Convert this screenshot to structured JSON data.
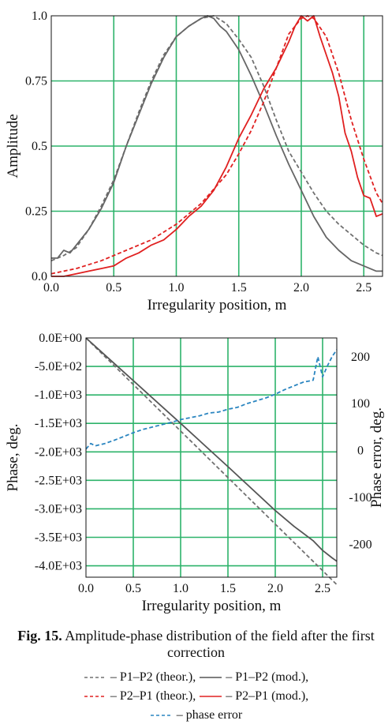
{
  "chart_data": [
    {
      "type": "line",
      "xlabel": "Irregularity position, m",
      "ylabel": "Amplitude",
      "xlim": [
        0,
        2.65
      ],
      "ylim": [
        0,
        1.0
      ],
      "xticks": [
        "0.0",
        "0.5",
        "1.0",
        "1.5",
        "2.0",
        "2.5"
      ],
      "yticks": [
        "0.0",
        "0.25",
        "0.5",
        "0.75",
        "1.0"
      ],
      "grid": true,
      "series": [
        {
          "name": "P1–P2 (theor.)",
          "color": "#707070",
          "dash": true,
          "x": [
            0,
            0.1,
            0.2,
            0.3,
            0.4,
            0.5,
            0.6,
            0.7,
            0.8,
            0.9,
            1.0,
            1.1,
            1.2,
            1.3,
            1.4,
            1.5,
            1.6,
            1.7,
            1.8,
            1.9,
            2.0,
            2.1,
            2.2,
            2.3,
            2.4,
            2.5,
            2.6,
            2.65
          ],
          "values": [
            0.06,
            0.08,
            0.11,
            0.18,
            0.27,
            0.37,
            0.5,
            0.63,
            0.75,
            0.85,
            0.92,
            0.96,
            0.99,
            1.0,
            0.97,
            0.91,
            0.84,
            0.73,
            0.6,
            0.48,
            0.4,
            0.32,
            0.25,
            0.2,
            0.16,
            0.12,
            0.09,
            0.08
          ]
        },
        {
          "name": "P1–P2 (mod.)",
          "color": "#666666",
          "dash": false,
          "x": [
            0,
            0.05,
            0.1,
            0.15,
            0.2,
            0.3,
            0.4,
            0.5,
            0.6,
            0.7,
            0.8,
            0.9,
            1.0,
            1.1,
            1.2,
            1.25,
            1.3,
            1.35,
            1.4,
            1.5,
            1.6,
            1.7,
            1.8,
            1.9,
            2.0,
            2.1,
            2.2,
            2.3,
            2.4,
            2.5,
            2.6,
            2.65
          ],
          "values": [
            0.07,
            0.07,
            0.1,
            0.09,
            0.12,
            0.18,
            0.26,
            0.36,
            0.5,
            0.62,
            0.74,
            0.84,
            0.92,
            0.96,
            0.99,
            1.0,
            0.99,
            0.96,
            0.94,
            0.87,
            0.77,
            0.66,
            0.54,
            0.43,
            0.33,
            0.23,
            0.15,
            0.1,
            0.06,
            0.04,
            0.02,
            0.02
          ]
        },
        {
          "name": "P2–P1 (theor.)",
          "color": "#e02020",
          "dash": true,
          "x": [
            0,
            0.2,
            0.4,
            0.6,
            0.8,
            1.0,
            1.2,
            1.4,
            1.5,
            1.6,
            1.7,
            1.8,
            1.9,
            2.0,
            2.05,
            2.1,
            2.2,
            2.3,
            2.4,
            2.5,
            2.6,
            2.65
          ],
          "values": [
            0.01,
            0.03,
            0.06,
            0.1,
            0.14,
            0.2,
            0.28,
            0.39,
            0.47,
            0.56,
            0.67,
            0.8,
            0.93,
            0.99,
            1.0,
            0.99,
            0.92,
            0.78,
            0.6,
            0.45,
            0.32,
            0.28
          ]
        },
        {
          "name": "P2–P1 (mod.)",
          "color": "#e02020",
          "dash": false,
          "x": [
            0,
            0.1,
            0.2,
            0.3,
            0.4,
            0.5,
            0.6,
            0.7,
            0.8,
            0.9,
            1.0,
            1.1,
            1.2,
            1.3,
            1.4,
            1.5,
            1.6,
            1.7,
            1.8,
            1.9,
            1.95,
            2.0,
            2.05,
            2.1,
            2.15,
            2.2,
            2.25,
            2.3,
            2.35,
            2.4,
            2.45,
            2.5,
            2.55,
            2.6,
            2.65
          ],
          "values": [
            0.0,
            0.0,
            0.01,
            0.02,
            0.03,
            0.04,
            0.07,
            0.09,
            0.12,
            0.14,
            0.18,
            0.23,
            0.27,
            0.33,
            0.42,
            0.53,
            0.62,
            0.72,
            0.8,
            0.9,
            0.96,
            1.0,
            0.98,
            1.0,
            0.92,
            0.85,
            0.78,
            0.69,
            0.55,
            0.48,
            0.38,
            0.31,
            0.3,
            0.23,
            0.24
          ]
        }
      ]
    },
    {
      "type": "line",
      "xlabel": "Irregularity position, m",
      "ylabel": "Phase, deg.",
      "y2label": "Phase error, deg.",
      "xlim": [
        0,
        2.65
      ],
      "ylim": [
        -4200,
        0
      ],
      "y2lim": [
        -270,
        240
      ],
      "xticks": [
        "0.0",
        "0.5",
        "1.0",
        "1.5",
        "2.0",
        "2.5"
      ],
      "yticks": [
        "0.0E+00",
        "-5.0E+02",
        "-1.0E+03",
        "-1.5E+03",
        "-2.0E+03",
        "-2.5E+03",
        "-3.0E+03",
        "-3.5E+03",
        "-4.0E+03"
      ],
      "y2ticks": [
        "200",
        "100",
        "0",
        "-100",
        "-200"
      ],
      "grid": true,
      "series": [
        {
          "name": "P1–P2 (theor.)",
          "color": "#707070",
          "dash": true,
          "axis": "left",
          "x": [
            0,
            2.65
          ],
          "values": [
            0,
            -4330
          ]
        },
        {
          "name": "P1–P2 (mod.)",
          "color": "#555555",
          "dash": false,
          "axis": "left",
          "x": [
            0,
            0.5,
            1.0,
            1.5,
            2.0,
            2.2,
            2.4,
            2.5,
            2.6,
            2.65
          ],
          "values": [
            0,
            -750,
            -1500,
            -2260,
            -3030,
            -3310,
            -3560,
            -3730,
            -3860,
            -3920
          ]
        },
        {
          "name": "phase error",
          "color": "#2a85c0",
          "dash": true,
          "axis": "right",
          "x": [
            0,
            0.05,
            0.1,
            0.2,
            0.3,
            0.4,
            0.5,
            0.6,
            0.7,
            0.8,
            0.9,
            1.0,
            1.1,
            1.2,
            1.3,
            1.4,
            1.5,
            1.6,
            1.7,
            1.8,
            1.9,
            2.0,
            2.1,
            2.2,
            2.3,
            2.35,
            2.4,
            2.45,
            2.5,
            2.55,
            2.6,
            2.65
          ],
          "values": [
            3,
            15,
            10,
            15,
            22,
            30,
            38,
            45,
            50,
            55,
            60,
            66,
            70,
            74,
            80,
            82,
            88,
            92,
            100,
            106,
            112,
            120,
            130,
            138,
            146,
            148,
            150,
            200,
            157,
            180,
            200,
            215
          ]
        }
      ]
    }
  ],
  "caption": {
    "label": "Fig. 15.",
    "text": "Amplitude-phase distribution of the field after the first correction"
  },
  "legend": [
    {
      "text": "– P1–P2 (theor.),",
      "color": "#707070",
      "dash": true
    },
    {
      "text": "– P1–P2 (mod.),",
      "color": "#555555",
      "dash": false
    },
    {
      "text": "– P2–P1 (theor.),",
      "color": "#e02020",
      "dash": true
    },
    {
      "text": "– P2–P1 (mod.),",
      "color": "#e02020",
      "dash": false
    },
    {
      "text": "– phase error",
      "color": "#2a85c0",
      "dash": true
    }
  ]
}
